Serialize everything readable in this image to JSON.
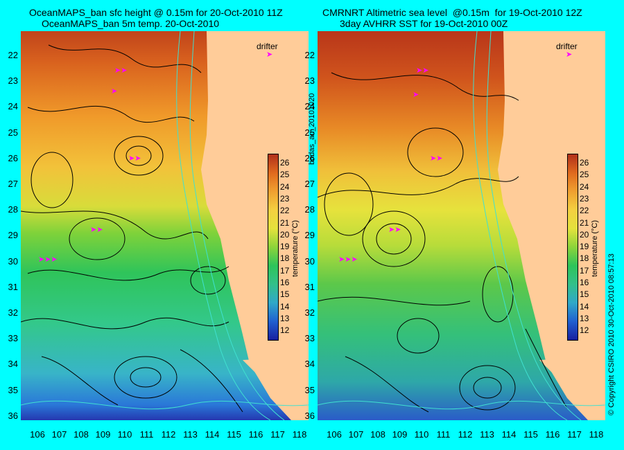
{
  "left": {
    "title_line1": "OceanMAPS_ban sfc height @ 0.15m for 20-Oct-2010 11Z",
    "title_line2": "OceanMAPS_ban 5m temp. 20-Oct-2010",
    "colorbar_label": "temperature (°C)",
    "drifter_label": "drifter"
  },
  "right": {
    "title_line1": "CMRNRT Altimetric sea level  @0.15m  for 19-Oct-2010 12Z",
    "title_line2": "3day AVHRR SST for 19-Oct-2010 00Z",
    "colorbar_label": "temperature (°C)",
    "drifter_label": "drifter"
  },
  "side_label_middle": "bodas_an_20101020",
  "side_label_right": "© Copyright CSIRO 2010    30-Oct-2010 08:57:13",
  "y_ticks": [
    "22",
    "23",
    "24",
    "25",
    "26",
    "27",
    "28",
    "29",
    "30",
    "31",
    "32",
    "33",
    "34",
    "35",
    "36"
  ],
  "x_ticks": [
    "106",
    "107",
    "108",
    "109",
    "110",
    "111",
    "112",
    "113",
    "114",
    "115",
    "116",
    "117",
    "118"
  ],
  "colorbar_ticks": [
    "26",
    "25",
    "24",
    "23",
    "22",
    "21",
    "20",
    "19",
    "18",
    "17",
    "16",
    "15",
    "14",
    "13",
    "12"
  ],
  "colors": {
    "background": "#00ffff",
    "land": "#ffcc99",
    "drifter": "#ff00ff",
    "contour": "#000000",
    "isobath": "#40e0d0"
  }
}
